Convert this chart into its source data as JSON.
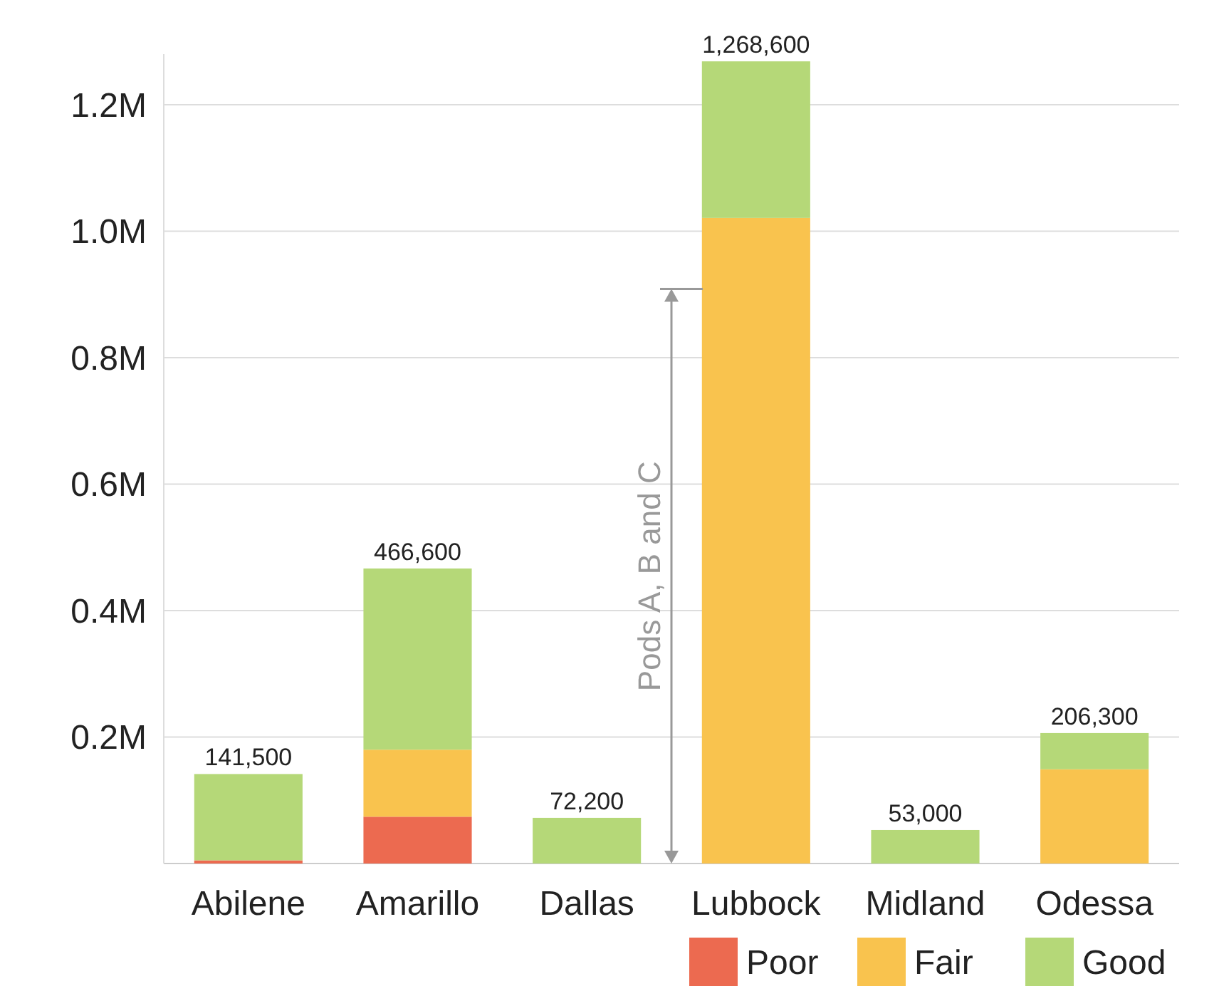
{
  "chart_data": {
    "type": "bar",
    "stacked": true,
    "categories": [
      "Abilene",
      "Amarillo",
      "Dallas",
      "Lubbock",
      "Midland",
      "Odessa"
    ],
    "series": [
      {
        "name": "Poor",
        "color": "#ec6a50",
        "values": [
          5000,
          74000,
          0,
          0,
          0,
          0
        ]
      },
      {
        "name": "Fair",
        "color": "#f9c34e",
        "values": [
          0,
          106000,
          0,
          1021000,
          0,
          149000
        ]
      },
      {
        "name": "Good",
        "color": "#b5d878",
        "values": [
          136500,
          286600,
          72200,
          247600,
          53000,
          57300
        ]
      }
    ],
    "totals": [
      "141,500",
      "466,600",
      "72,200",
      "1,268,600",
      "53,000",
      "206,300"
    ],
    "ylim": [
      0,
      1280000
    ],
    "yticks": [
      {
        "value": 0,
        "label": null
      },
      {
        "value": 200000,
        "label": "0.2M"
      },
      {
        "value": 400000,
        "label": "0.4M"
      },
      {
        "value": 600000,
        "label": "0.6M"
      },
      {
        "value": 800000,
        "label": "0.8M"
      },
      {
        "value": 1000000,
        "label": "1.0M"
      },
      {
        "value": 1200000,
        "label": "1.2M"
      }
    ],
    "grid": "y",
    "legend": "bottom right",
    "annotations": [
      "Pods A, B and C"
    ]
  }
}
